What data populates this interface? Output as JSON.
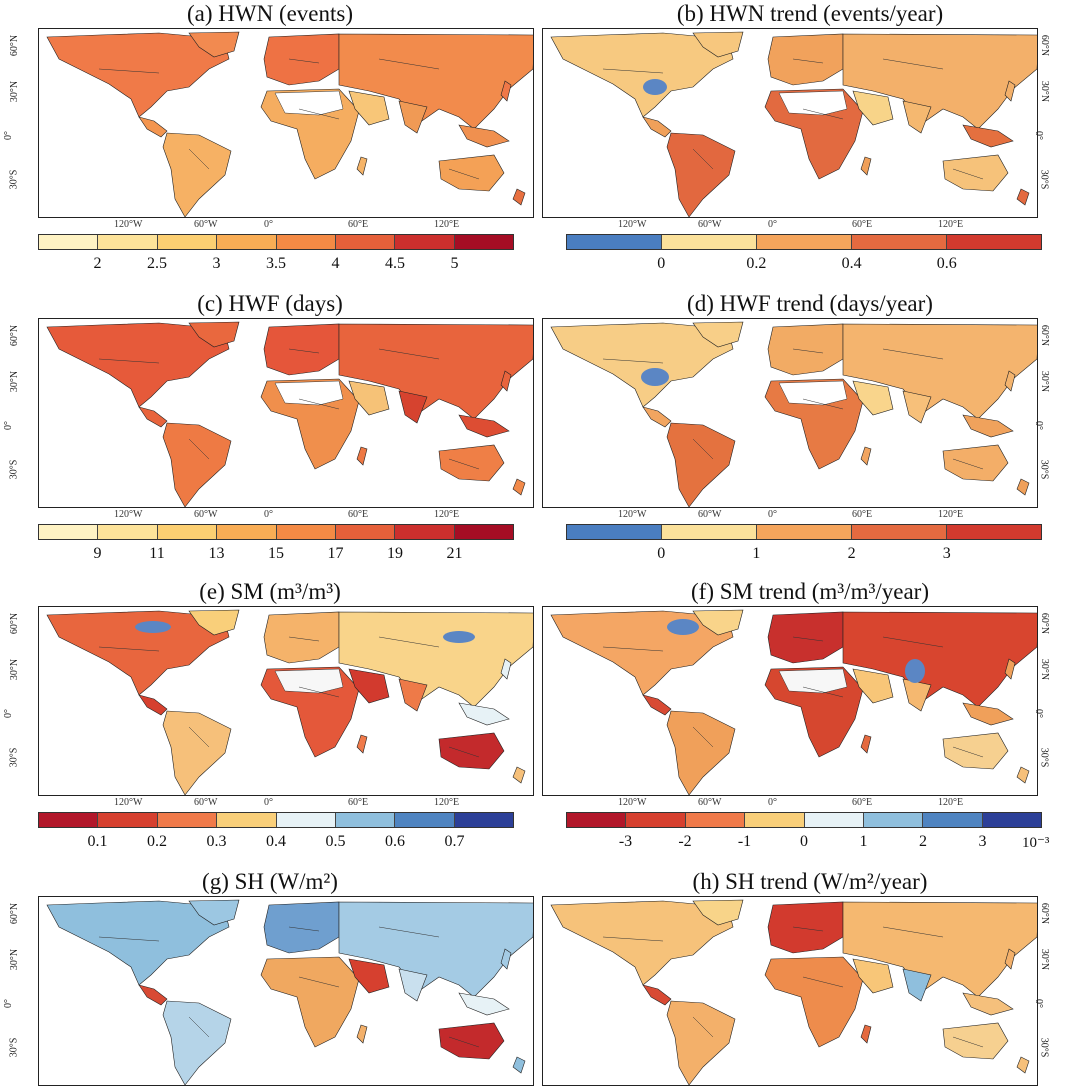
{
  "panels": [
    {
      "id": "a",
      "title": "(a) HWN (events)",
      "colormap": "sequential",
      "colors": [
        "#fff3c4",
        "#fde39a",
        "#fccf72",
        "#f9ad55",
        "#f48a45",
        "#e6603a",
        "#cc2f2d",
        "#a50d24"
      ],
      "ticks": [
        "2",
        "2.5",
        "3",
        "3.5",
        "4",
        "4.5",
        "5"
      ],
      "tick_positions": "inner"
    },
    {
      "id": "b",
      "title": "(b) HWN trend (events/year)",
      "colormap": "trend",
      "colors": [
        "#4a7ec1",
        "#fbe19b",
        "#f5a55c",
        "#e46a40",
        "#d23a2e"
      ],
      "ticks": [
        "0",
        "0.2",
        "0.4",
        "0.6"
      ],
      "tick_positions": "inner"
    },
    {
      "id": "c",
      "title": "(c) HWF (days)",
      "colormap": "sequential",
      "colors": [
        "#fff3c4",
        "#fde39a",
        "#fccf72",
        "#f9ad55",
        "#f48a45",
        "#e6603a",
        "#cc2f2d",
        "#a50d24"
      ],
      "ticks": [
        "9",
        "11",
        "13",
        "15",
        "17",
        "19",
        "21"
      ],
      "tick_positions": "inner"
    },
    {
      "id": "d",
      "title": "(d) HWF trend (days/year)",
      "colormap": "trend",
      "colors": [
        "#4a7ec1",
        "#fbe19b",
        "#f5a55c",
        "#e46a40",
        "#d23a2e"
      ],
      "ticks": [
        "0",
        "1",
        "2",
        "3"
      ],
      "tick_positions": "inner"
    },
    {
      "id": "e",
      "title": "(e) SM (m³/m³)",
      "colormap": "diverging",
      "colors": [
        "#b2172a",
        "#d6402f",
        "#f07a4a",
        "#f9cf7a",
        "#e7f2f6",
        "#8fbfdd",
        "#4f84c1",
        "#2c3f98"
      ],
      "ticks": [
        "0.1",
        "0.2",
        "0.3",
        "0.4",
        "0.5",
        "0.6",
        "0.7"
      ],
      "tick_positions": "inner"
    },
    {
      "id": "f",
      "title": "(f) SM trend (m³/m³/year)",
      "colormap": "diverging",
      "colors": [
        "#b2172a",
        "#d6402f",
        "#f07a4a",
        "#f9cf7a",
        "#e7f2f6",
        "#8fbfdd",
        "#4f84c1",
        "#2c3f98"
      ],
      "ticks": [
        "-3",
        "-2",
        "-1",
        "0",
        "1",
        "2",
        "3"
      ],
      "tick_positions": "inner",
      "unit_label": "10⁻³"
    },
    {
      "id": "g",
      "title": "(g) SH (W/m²)",
      "colormap": "sh",
      "colors": []
    },
    {
      "id": "h",
      "title": "(h) SH trend (W/m²/year)",
      "colormap": "diverging",
      "colors": []
    }
  ],
  "lat_labels": [
    "60°N",
    "30°N",
    "0°",
    "30°S"
  ],
  "lon_labels": [
    "120°W",
    "60°W",
    "0°",
    "60°E",
    "120°E"
  ]
}
